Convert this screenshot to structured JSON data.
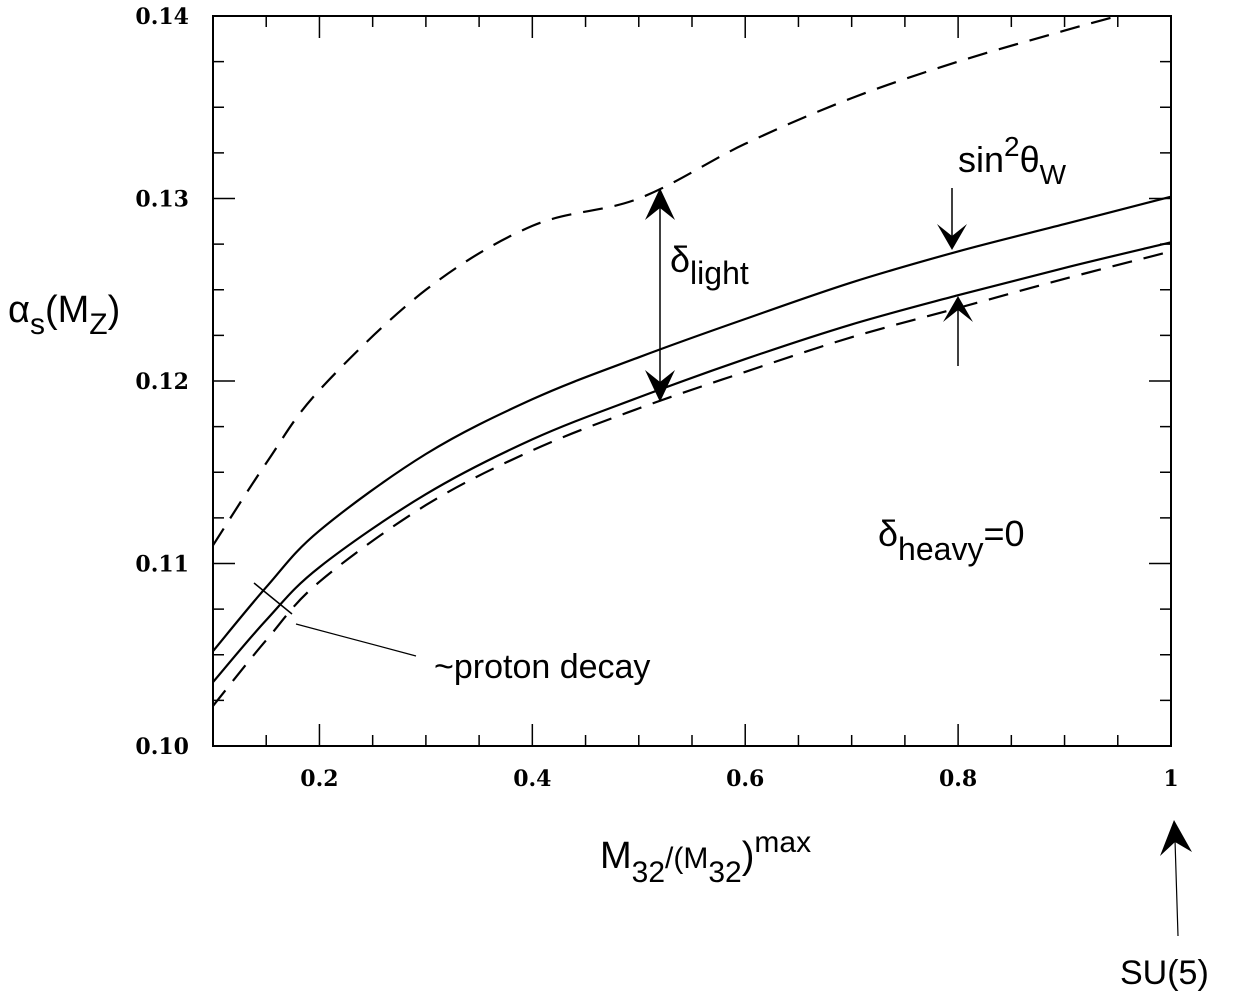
{
  "chart_data": {
    "type": "line",
    "xlim": [
      0.1,
      1.0
    ],
    "ylim": [
      0.1,
      0.14
    ],
    "x_ticks": [
      0.2,
      0.4,
      0.6,
      0.8,
      1.0
    ],
    "x_tick_labels": [
      "0.2",
      "0.4",
      "0.6",
      "0.8",
      "1"
    ],
    "y_ticks": [
      0.1,
      0.11,
      0.12,
      0.13,
      0.14
    ],
    "y_tick_labels": [
      "0.10",
      "0.11",
      "0.12",
      "0.13",
      "0.14"
    ],
    "xlabel": {
      "main": "M",
      "sub1": "32",
      "mid": "/(M",
      "sub2": "32",
      "end": ")",
      "sup": "max"
    },
    "ylabel": {
      "main": "α",
      "sub": "s",
      "rest": "(M",
      "sub2": "Z",
      "end": ")"
    },
    "grid": false,
    "series": [
      {
        "style": "solid",
        "x": [
          0.1,
          0.15,
          0.2,
          0.3,
          0.4,
          0.5,
          0.6,
          0.7,
          0.8,
          0.9,
          1.0
        ],
        "y": [
          0.1052,
          0.1087,
          0.1118,
          0.116,
          0.119,
          0.1213,
          0.1234,
          0.1254,
          0.1271,
          0.1286,
          0.1301
        ]
      },
      {
        "style": "solid",
        "x": [
          0.1,
          0.15,
          0.2,
          0.3,
          0.4,
          0.5,
          0.6,
          0.7,
          0.8,
          0.9,
          1.0
        ],
        "y": [
          0.1035,
          0.1069,
          0.1098,
          0.1138,
          0.1168,
          0.1191,
          0.1212,
          0.1231,
          0.1247,
          0.1262,
          0.1276
        ]
      },
      {
        "style": "dashed",
        "x": [
          0.1,
          0.15,
          0.2,
          0.3,
          0.4,
          0.5,
          0.6,
          0.7,
          0.8,
          0.9,
          1.0
        ],
        "y": [
          0.1022,
          0.1058,
          0.109,
          0.1132,
          0.1162,
          0.1185,
          0.1205,
          0.1224,
          0.124,
          0.1256,
          0.1271
        ]
      },
      {
        "style": "dashed",
        "x": [
          0.1,
          0.15,
          0.2,
          0.3,
          0.4,
          0.5,
          0.6,
          0.7,
          0.8,
          0.9,
          0.95
        ],
        "y": [
          0.111,
          0.1155,
          0.1195,
          0.125,
          0.1285,
          0.13,
          0.133,
          0.1355,
          0.1375,
          0.1392,
          0.14
        ]
      }
    ],
    "annotations": {
      "sin2": {
        "main": "sin",
        "sup": "2",
        "theta": "θ",
        "sub": "W"
      },
      "delta_light": {
        "main": "δ",
        "sub": "light"
      },
      "delta_heavy": {
        "main": "δ",
        "sub": "heavy",
        "rest": "=0"
      },
      "proton": "~proton decay",
      "su5": "SU(5)"
    }
  }
}
